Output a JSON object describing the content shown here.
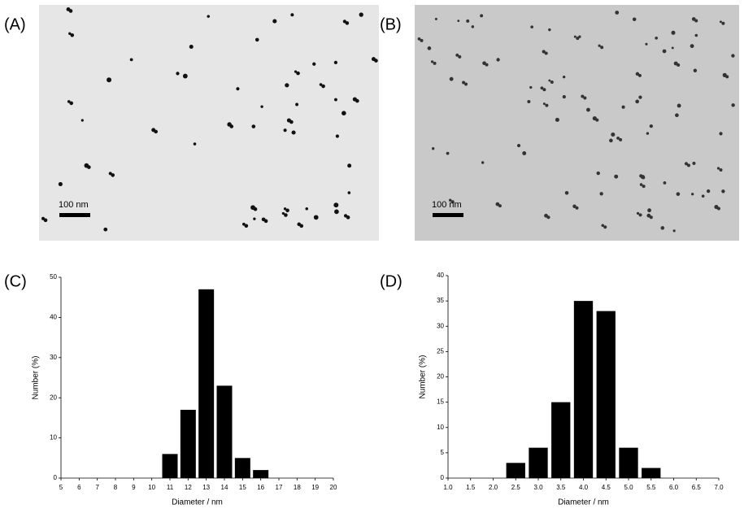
{
  "images": [
    {
      "panel_label": "(A)",
      "scale_bar": "100 nm"
    },
    {
      "panel_label": "(B)",
      "scale_bar": "100 nm"
    }
  ],
  "chart_data": [
    {
      "type": "bar",
      "panel_label": "(C)",
      "xlabel": "Diameter / nm",
      "ylabel": "Number (%)",
      "x": [
        11,
        12,
        13,
        14,
        15,
        16
      ],
      "values": [
        6,
        17,
        47,
        23,
        5,
        2
      ],
      "color": "#000000",
      "xlim": [
        5,
        20
      ],
      "xticks": [
        5,
        6,
        7,
        8,
        9,
        10,
        11,
        12,
        13,
        14,
        15,
        16,
        17,
        18,
        19,
        20
      ],
      "ylim": [
        0,
        50
      ],
      "yticks": [
        0,
        10,
        20,
        30,
        40,
        50
      ]
    },
    {
      "type": "bar",
      "panel_label": "(D)",
      "xlabel": "Diameter / nm",
      "ylabel": "Number (%)",
      "x": [
        2.5,
        3,
        3.5,
        4,
        4.5,
        5,
        5.5
      ],
      "values": [
        3,
        6,
        15,
        35,
        33,
        6,
        2
      ],
      "color": "#000000",
      "xlim": [
        1,
        7
      ],
      "xticks": [
        {
          "value": 1,
          "label": "1.0"
        },
        {
          "value": 1.5,
          "label": "1.5"
        },
        {
          "value": 2,
          "label": "2.0"
        },
        {
          "value": 2.5,
          "label": "2.5"
        },
        {
          "value": 3,
          "label": "3.0"
        },
        {
          "value": 3.5,
          "label": "3.5"
        },
        {
          "value": 4,
          "label": "4.0"
        },
        {
          "value": 4.5,
          "label": "4.5"
        },
        {
          "value": 5,
          "label": "5.0"
        },
        {
          "value": 5.5,
          "label": "5.5"
        },
        {
          "value": 6,
          "label": "6.0"
        },
        {
          "value": 6.5,
          "label": "6.5"
        },
        {
          "value": 7,
          "label": "7.0"
        }
      ],
      "ylim": [
        0,
        40
      ],
      "yticks": [
        0,
        5,
        10,
        15,
        20,
        25,
        30,
        35,
        40
      ]
    }
  ]
}
